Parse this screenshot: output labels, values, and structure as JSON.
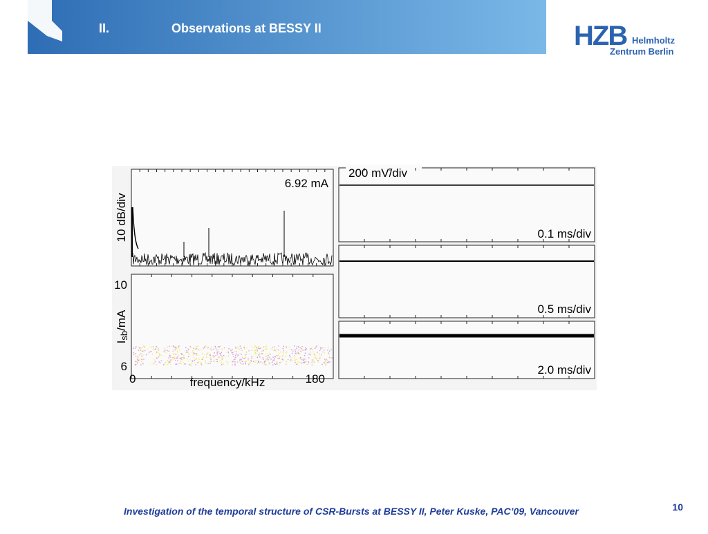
{
  "header": {
    "number": "II.",
    "title": "Observations at BESSY II"
  },
  "logo": {
    "mark": "HZB",
    "line1": "Helmholtz",
    "line2": "Zentrum Berlin"
  },
  "figure": {
    "spectrum": {
      "current": "6.92 mA",
      "y_label": "10 dB/div"
    },
    "sideband": {
      "y_label": {
        "main": "I",
        "sub": "sb",
        "unit": "/mA"
      },
      "y_top": "10",
      "y_bottom": "6",
      "x_left": "0",
      "x_right": "180",
      "x_label": "frequency/kHz"
    },
    "scope": {
      "vertical": "200 mV/div",
      "traces": [
        "0.1 ms/div",
        "0.5 ms/div",
        "2.0 ms/div"
      ]
    }
  },
  "footer": {
    "text": "Investigation of the temporal structure of CSR-Bursts at BESSY II, Peter Kuske, PAC’09, Vancouver",
    "page": "10"
  }
}
